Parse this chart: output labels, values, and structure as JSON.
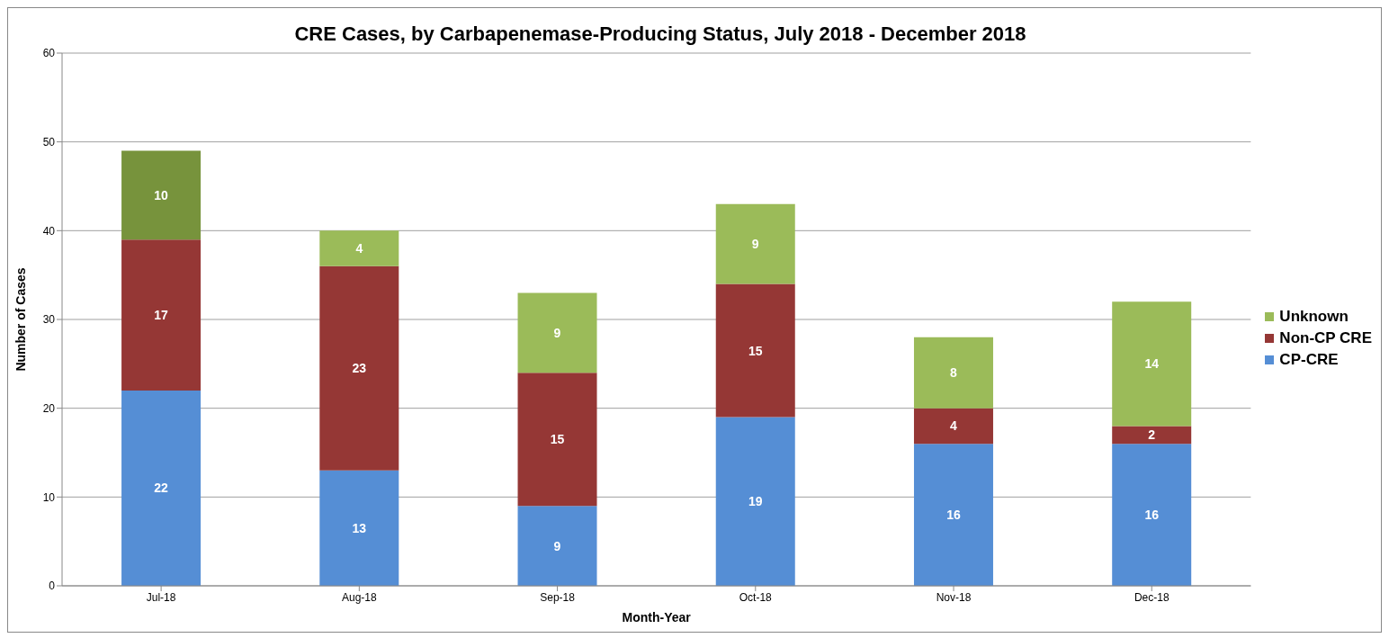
{
  "chart_data": {
    "type": "bar",
    "title": "CRE Cases, by Carbapenemase-Producing Status, July 2018 - December 2018",
    "xlabel": "Month-Year",
    "ylabel": "Number of Cases",
    "categories": [
      "Jul-18",
      "Aug-18",
      "Sep-18",
      "Oct-18",
      "Nov-18",
      "Dec-18"
    ],
    "stacked": true,
    "series": [
      {
        "name": "CP-CRE",
        "color": "#558ed5",
        "values": [
          22,
          13,
          9,
          19,
          16,
          16
        ]
      },
      {
        "name": "Non-CP CRE",
        "color": "#953735",
        "values": [
          17,
          23,
          15,
          15,
          4,
          2
        ]
      },
      {
        "name": "Unknown",
        "color": "#9bbb59",
        "colors": [
          "#77933c",
          "#9bbb59",
          "#9bbb59",
          "#9bbb59",
          "#9bbb59",
          "#9bbb59"
        ],
        "values": [
          10,
          4,
          9,
          9,
          8,
          14
        ]
      }
    ],
    "ylim": [
      0,
      60
    ],
    "yticks": [
      0,
      10,
      20,
      30,
      40,
      50,
      60
    ],
    "grid": "y",
    "legend": "right",
    "data_labels": true
  }
}
